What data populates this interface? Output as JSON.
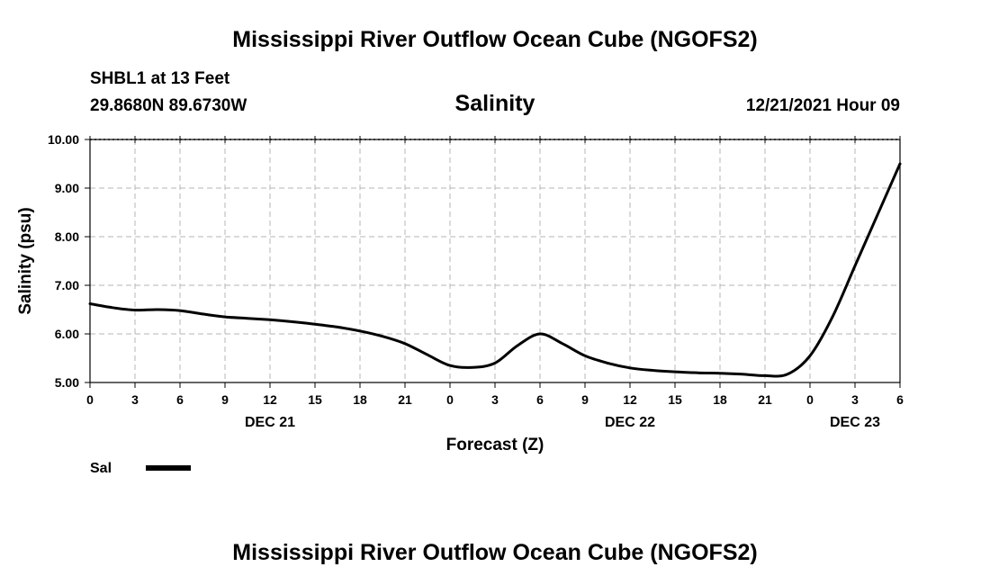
{
  "page": {
    "title": "Mississippi River Outflow Ocean Cube (NGOFS2)",
    "station": "SHBL1 at 13 Feet",
    "coords": "29.8680N  89.6730W",
    "date_label": "12/21/2021 Hour 09",
    "footer_title": "Mississippi River Outflow Ocean Cube (NGOFS2)"
  },
  "chart_data": {
    "type": "line",
    "title": "Salinity",
    "xlabel": "Forecast (Z)",
    "ylabel": "Salinity (psu)",
    "ylim": [
      5.0,
      10.0
    ],
    "xlim": [
      0,
      54
    ],
    "yticks": [
      "5.00",
      "6.00",
      "7.00",
      "8.00",
      "9.00",
      "10.00"
    ],
    "xticks": [
      "0",
      "3",
      "6",
      "9",
      "12",
      "15",
      "18",
      "21",
      "0",
      "3",
      "6",
      "9",
      "12",
      "15",
      "18",
      "21",
      "0",
      "3",
      "6"
    ],
    "date_labels": [
      {
        "label": "DEC 21",
        "hour": 12
      },
      {
        "label": "DEC 22",
        "hour": 36
      },
      {
        "label": "DEC 23",
        "hour": 51
      }
    ],
    "grid": true,
    "legend": "bottom-left",
    "series": [
      {
        "name": "Sal",
        "color": "#000000",
        "x": [
          0,
          1.5,
          3,
          4.5,
          6,
          7.5,
          9,
          10.5,
          12,
          13.5,
          15,
          16.5,
          18,
          19.5,
          21,
          22.5,
          24,
          25.5,
          27,
          28.5,
          30,
          31.5,
          33,
          34.5,
          36,
          37.5,
          39,
          40.5,
          42,
          43.5,
          45,
          46.5,
          48,
          49.5,
          51,
          52.5,
          54
        ],
        "y": [
          6.62,
          6.54,
          6.49,
          6.5,
          6.48,
          6.41,
          6.35,
          6.32,
          6.29,
          6.25,
          6.2,
          6.14,
          6.06,
          5.95,
          5.8,
          5.57,
          5.35,
          5.31,
          5.4,
          5.76,
          6.0,
          5.8,
          5.55,
          5.4,
          5.3,
          5.25,
          5.22,
          5.2,
          5.19,
          5.17,
          5.14,
          5.17,
          5.55,
          6.35,
          7.4,
          8.45,
          9.5
        ]
      }
    ]
  }
}
